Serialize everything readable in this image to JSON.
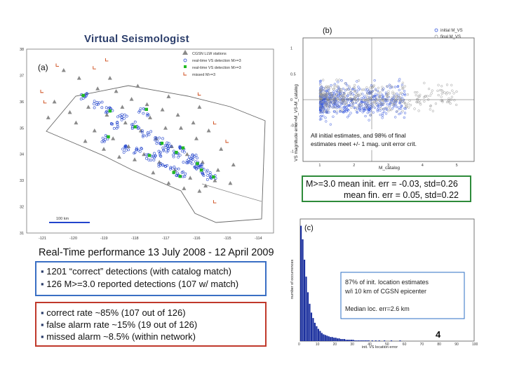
{
  "slide": {
    "title": "Virtual Seismologist",
    "page_number": "4"
  },
  "performance": {
    "heading": "Real-Time performance 13 July 2008 - 12 April 2009",
    "box1": [
      "1201 “correct” detections (with catalog match)",
      "126 M>=3.0 reported detections (107 w/ match)"
    ],
    "box2": [
      "correct rate ~85% (107 out of 126)",
      "false alarm rate ~15% (19 out of 126)",
      "missed alarm ~8.5% (within network)"
    ]
  },
  "stats_box": {
    "line1": "M>=3.0 mean init. err = -0.03, std=0.26",
    "line2": "mean fin. err = 0.05, std=0.22"
  },
  "chart_data": [
    {
      "type": "scatter",
      "panel_label": "(a)",
      "title": "",
      "xlabel": "",
      "ylabel": "",
      "x_ticks": [
        "-121",
        "-120",
        "-119",
        "-118",
        "-117",
        "-116",
        "-115",
        "-114"
      ],
      "y_ticks": [
        "38",
        "37",
        "36",
        "35",
        "34",
        "33",
        "32",
        "31"
      ],
      "xlim": [
        -121.5,
        -113.5
      ],
      "ylim": [
        31,
        38
      ],
      "scale_bar_label": "100 km",
      "legend": [
        "CGSN LLW stations",
        "real-time VS detection M>=3",
        "real-time VS detection M>=3",
        "missed M>=3"
      ],
      "colors": {
        "stations": "#8a8a8a",
        "detections": "#2244cc",
        "large": "#22bb22",
        "missed": "#cc4411"
      },
      "series": [
        {
          "name": "CGSN LLW stations",
          "points": [
            [
              -120.3,
              37.2
            ],
            [
              -119.8,
              36.9
            ],
            [
              -119.2,
              36.5
            ],
            [
              -118.6,
              36.4
            ],
            [
              -118.1,
              36.1
            ],
            [
              -117.6,
              35.9
            ],
            [
              -117.1,
              35.7
            ],
            [
              -116.6,
              35.5
            ],
            [
              -116.1,
              35.2
            ],
            [
              -115.6,
              34.9
            ],
            [
              -119.5,
              35.8
            ],
            [
              -118.9,
              35.5
            ],
            [
              -118.3,
              35.2
            ],
            [
              -117.8,
              34.9
            ],
            [
              -117.3,
              34.6
            ],
            [
              -116.8,
              34.3
            ],
            [
              -116.3,
              34.0
            ],
            [
              -115.8,
              33.7
            ],
            [
              -115.3,
              33.4
            ],
            [
              -119.9,
              35.2
            ],
            [
              -119.3,
              34.9
            ],
            [
              -118.7,
              34.6
            ],
            [
              -118.2,
              34.3
            ],
            [
              -117.7,
              34.0
            ],
            [
              -117.2,
              33.7
            ],
            [
              -116.7,
              33.4
            ],
            [
              -116.2,
              33.1
            ],
            [
              -115.7,
              32.8
            ],
            [
              -120.6,
              36.0
            ],
            [
              -120.1,
              35.6
            ],
            [
              -118.0,
              33.8
            ],
            [
              -117.4,
              33.3
            ],
            [
              -116.9,
              32.9
            ],
            [
              -116.4,
              32.7
            ],
            [
              -115.9,
              32.6
            ],
            [
              -119.0,
              34.2
            ],
            [
              -118.5,
              33.9
            ],
            [
              -117.0,
              35.0
            ],
            [
              -116.0,
              34.6
            ],
            [
              -115.2,
              34.2
            ],
            [
              -114.8,
              33.6
            ],
            [
              -118.8,
              36.9
            ],
            [
              -117.9,
              36.6
            ],
            [
              -116.9,
              36.2
            ],
            [
              -115.9,
              35.8
            ],
            [
              -120.8,
              35.4
            ],
            [
              -119.6,
              34.5
            ],
            [
              -118.4,
              35.8
            ],
            [
              -117.5,
              35.4
            ],
            [
              -116.5,
              35.0
            ],
            [
              -115.4,
              33.0
            ],
            [
              -114.9,
              32.9
            ]
          ]
        },
        {
          "name": "real-time VS detection M>=3",
          "points": [
            [
              -119.6,
              36.2
            ],
            [
              -119.2,
              35.9
            ],
            [
              -118.8,
              35.7
            ],
            [
              -118.4,
              35.4
            ],
            [
              -118.0,
              35.1
            ],
            [
              -117.6,
              34.8
            ],
            [
              -117.2,
              34.5
            ],
            [
              -116.9,
              34.2
            ],
            [
              -116.6,
              34.0
            ],
            [
              -116.3,
              33.8
            ],
            [
              -116.0,
              33.6
            ],
            [
              -115.7,
              33.3
            ],
            [
              -115.5,
              33.1
            ],
            [
              -117.9,
              34.1
            ],
            [
              -117.5,
              33.9
            ],
            [
              -117.1,
              33.6
            ],
            [
              -116.7,
              33.4
            ],
            [
              -118.3,
              34.2
            ],
            [
              -117.7,
              35.6
            ],
            [
              -118.6,
              35.1
            ],
            [
              -116.4,
              34.2
            ],
            [
              -116.1,
              33.9
            ],
            [
              -115.9,
              33.5
            ],
            [
              -117.3,
              34.0
            ],
            [
              -118.9,
              34.6
            ],
            [
              -117.0,
              34.3
            ],
            [
              -116.5,
              33.2
            ]
          ]
        },
        {
          "name": "missed M>=3",
          "points": [
            [
              -120.5,
              37.4
            ],
            [
              -119.3,
              37.3
            ],
            [
              -118.9,
              37.6
            ],
            [
              -121.0,
              36.4
            ],
            [
              -120.9,
              36.0
            ],
            [
              -115.9,
              36.3
            ],
            [
              -115.4,
              35.2
            ],
            [
              -115.0,
              34.5
            ],
            [
              -115.4,
              32.2
            ]
          ]
        }
      ]
    },
    {
      "type": "scatter",
      "panel_label": "(b)",
      "title": "",
      "xlabel": "M_catalog",
      "ylabel": "VS magnitude error=M_VS-M_catalog",
      "x_ticks": [
        "1",
        "2",
        "3",
        "4",
        "5"
      ],
      "y_ticks": [
        "1",
        "0.5",
        "0",
        "-0.5",
        "-1"
      ],
      "xlim": [
        0.5,
        5.5
      ],
      "ylim": [
        -1.2,
        1.2
      ],
      "legend": [
        "initial M_VS",
        "final M_VS"
      ],
      "annotation": "All initial estimates, and 98% of final estimates meet +/- 1 mag. unit error crit.",
      "colors": {
        "initial": "#3355dd",
        "final": "#999999"
      },
      "series": [
        {
          "name": "initial M_VS",
          "summary": {
            "x_range": [
              1.0,
              3.5
            ],
            "mean_error": -0.03,
            "std": 0.26
          }
        },
        {
          "name": "final M_VS",
          "summary": {
            "x_range": [
              1.0,
              5.0
            ],
            "mean_error": 0.05,
            "std": 0.22
          }
        }
      ]
    },
    {
      "type": "bar",
      "panel_label": "(c)",
      "title": "",
      "xlabel": "init. VS location error",
      "ylabel": "number of occurrences",
      "x_ticks": [
        "0",
        "10",
        "20",
        "30",
        "40",
        "50",
        "60",
        "70",
        "80",
        "90",
        "100"
      ],
      "xlim": [
        0,
        100
      ],
      "ylim": [
        0,
        180
      ],
      "bin_width_km": 1,
      "values": [
        170,
        150,
        120,
        95,
        72,
        55,
        42,
        34,
        27,
        22,
        18,
        15,
        12,
        10,
        9,
        8,
        7,
        6,
        6,
        5,
        5,
        4,
        4,
        3,
        3,
        3,
        2,
        2,
        2,
        2,
        2,
        1,
        1,
        1,
        1,
        1,
        1,
        1,
        1,
        1,
        0,
        1,
        0,
        1,
        0,
        1,
        0,
        0,
        1,
        0,
        0,
        0,
        1,
        0,
        0,
        0,
        0,
        1,
        0,
        0
      ],
      "annotation_lines": [
        "87% of init. location estimates",
        "w/i 10 km of CGSN epicenter",
        "Median loc. err=2.6 km"
      ],
      "colors": {
        "bars": "#1a2f9e"
      }
    }
  ]
}
